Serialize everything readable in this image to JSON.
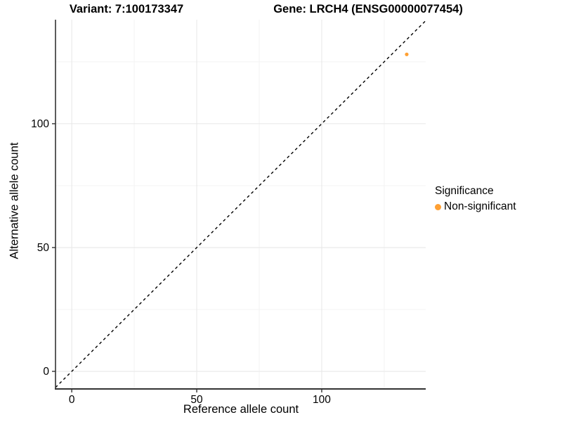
{
  "page": {
    "background": "#FFFFFF"
  },
  "chart_data": {
    "type": "scatter",
    "titles": {
      "left": "Variant: 7:100173347",
      "right": "Gene: LRCH4 (ENSG00000077454)"
    },
    "xlabel": "Reference allele count",
    "ylabel": "Alternative allele count",
    "x_ticks": [
      0,
      50,
      100
    ],
    "y_ticks": [
      0,
      50,
      100
    ],
    "x_minor_ticks": [
      25,
      75,
      125
    ],
    "y_minor_ticks": [
      25,
      75,
      125
    ],
    "xlim": [
      -6.5,
      141.6
    ],
    "ylim": [
      -7.1,
      142.0
    ],
    "grid": true,
    "series": [
      {
        "name": "Non-significant",
        "color": "#FFA033",
        "points": [
          {
            "x": 134,
            "y": 128
          }
        ]
      }
    ],
    "reference_line": {
      "type": "identity",
      "slope": 1,
      "intercept": 0,
      "style": "dashed",
      "color": "#000000"
    },
    "legend": {
      "title": "Significance",
      "position": "right",
      "items": [
        {
          "label": "Non-significant",
          "color": "#FFA033",
          "marker": "circle"
        }
      ]
    },
    "colors": {
      "grid_major": "#E6E6E6",
      "grid_minor": "#F3F3F3",
      "axis_line": "#333333",
      "tick_mark": "#333333",
      "tick_label": "#000000",
      "background": "#FFFFFF"
    }
  }
}
